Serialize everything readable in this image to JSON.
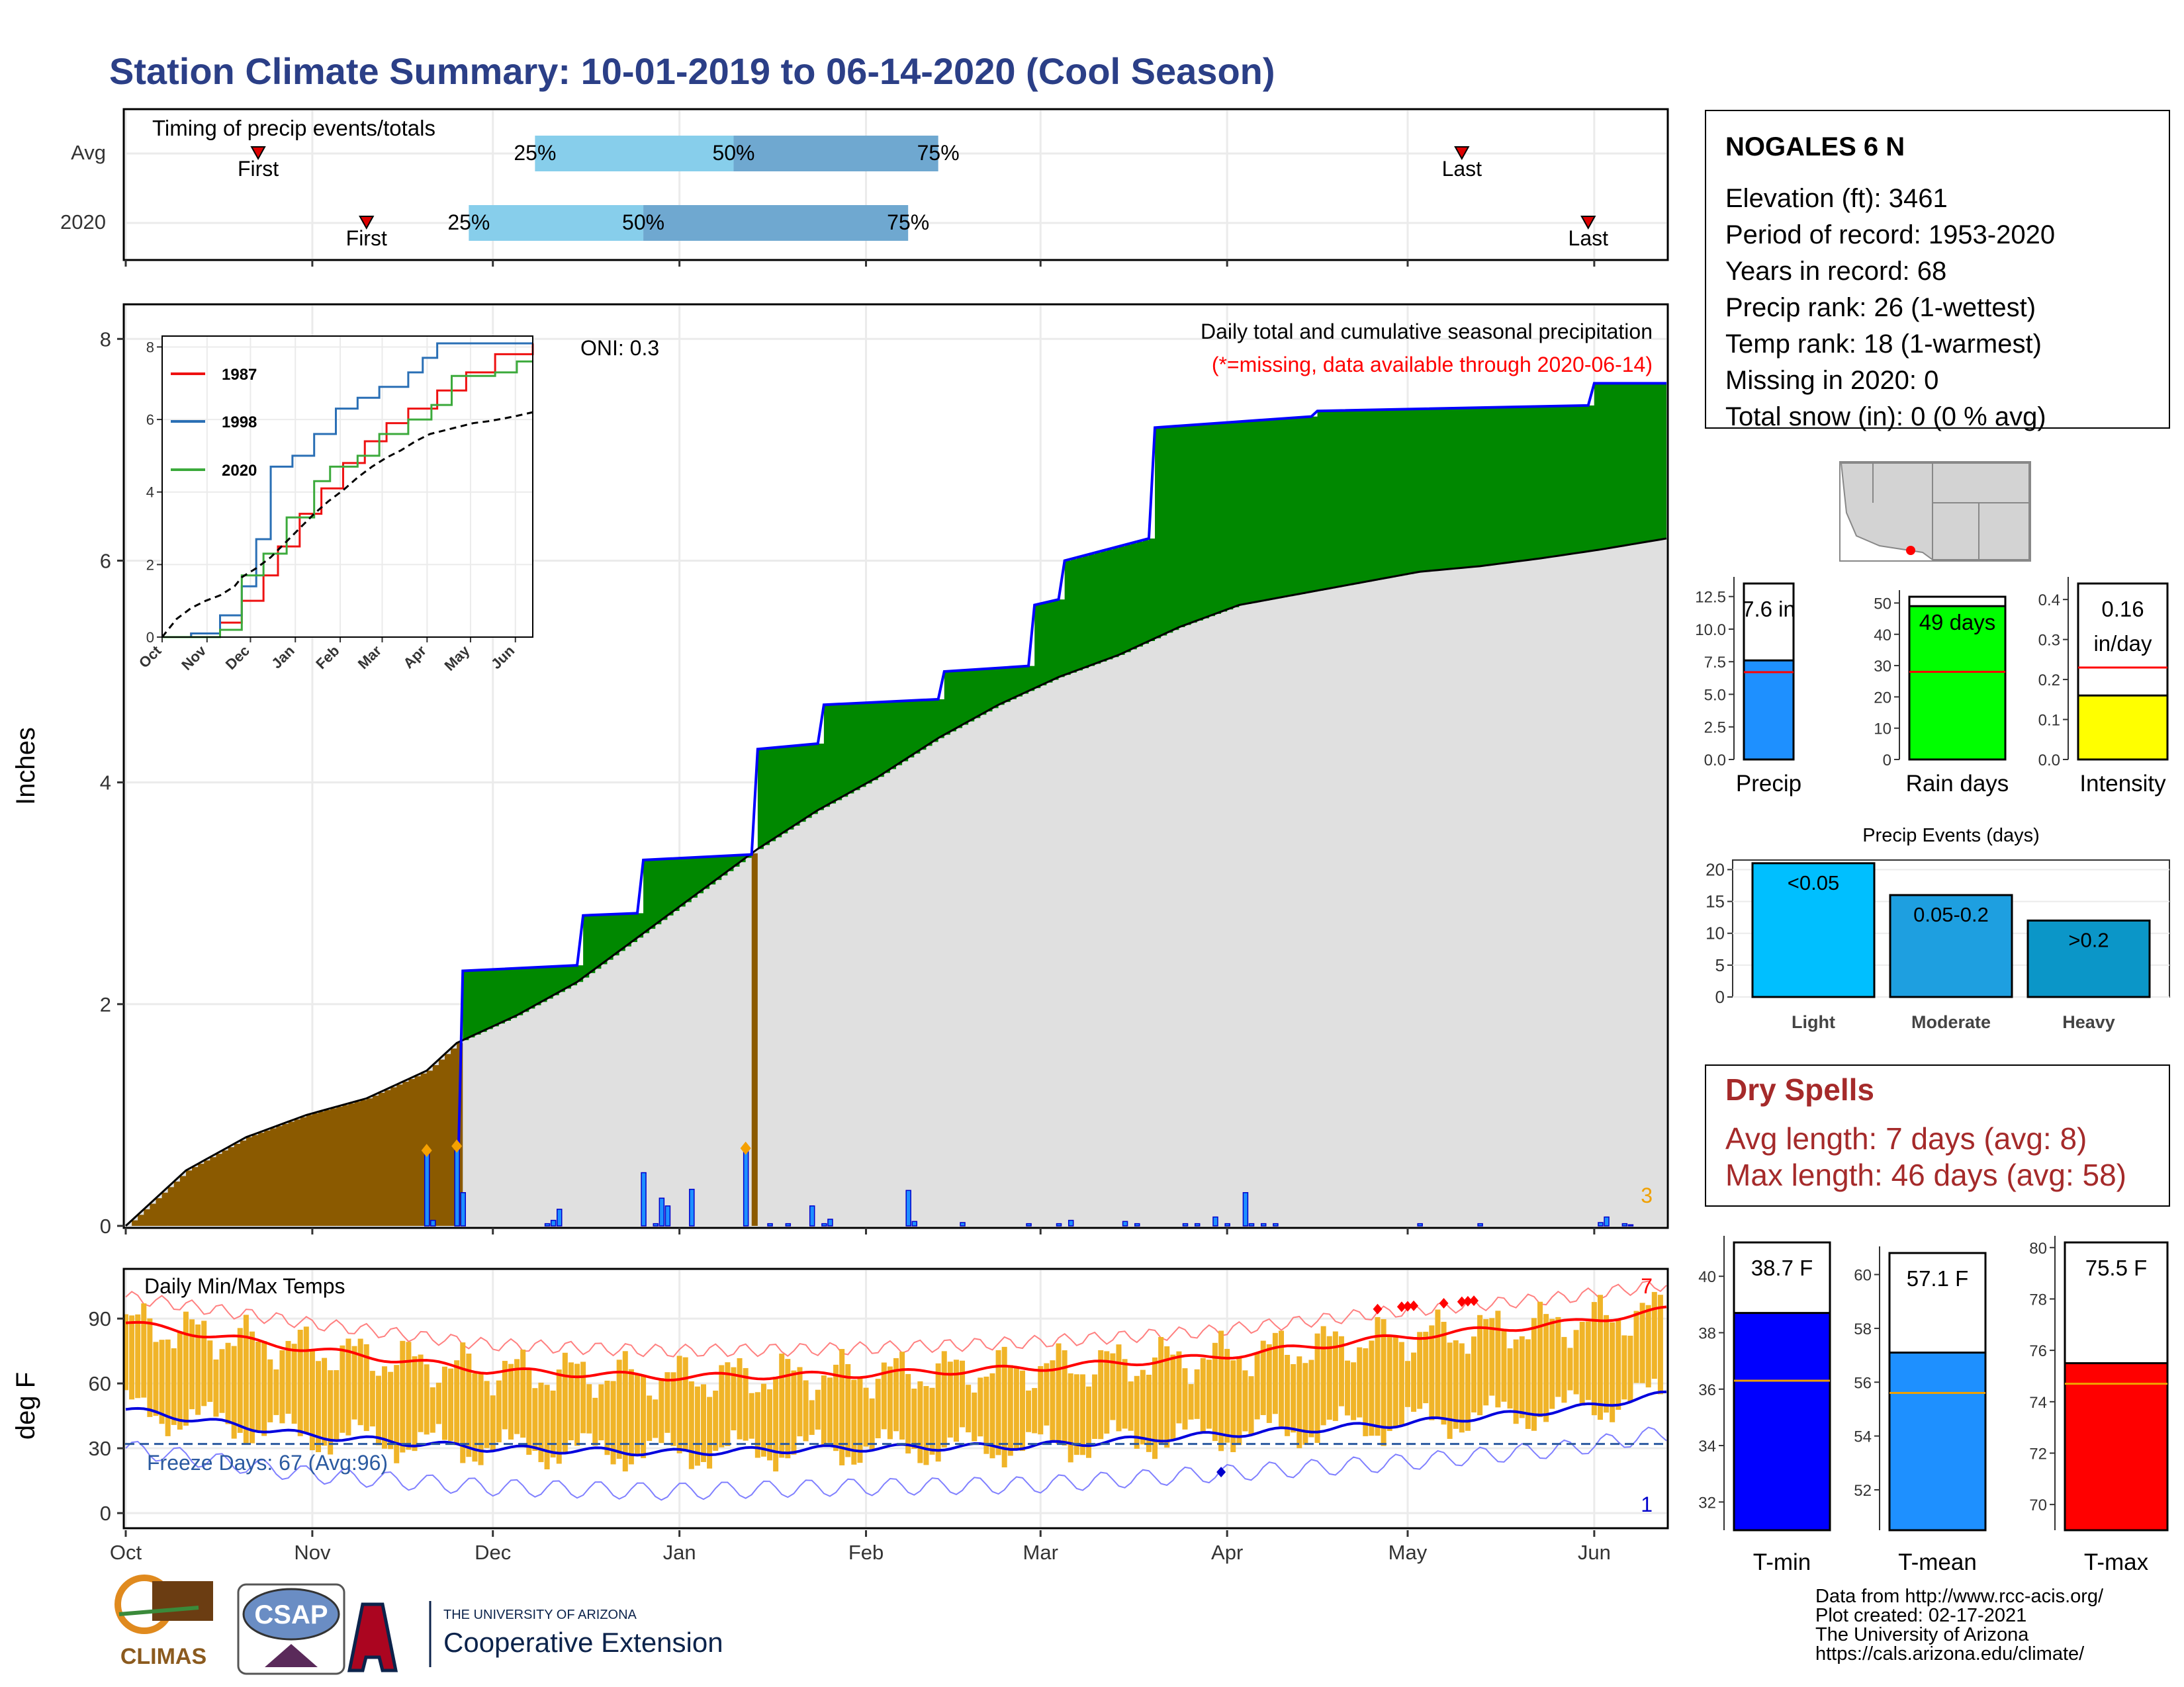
{
  "title": "Station Climate Summary: 10-01-2019 to 06-14-2020 (Cool Season)",
  "timing": {
    "caption": "Timing of precip events/totals",
    "rows": [
      {
        "label": "Avg",
        "first_label": "First",
        "last_label": "Last",
        "p25": "25%",
        "p50": "50%",
        "p75": "75%",
        "first_day": 22,
        "last_day": 222,
        "d25": 68,
        "d50": 101,
        "d75": 135
      },
      {
        "label": "2020",
        "first_label": "First",
        "last_label": "Last",
        "p25": "25%",
        "p50": "50%",
        "p75": "75%",
        "first_day": 40,
        "last_day": 243,
        "d25": 57,
        "d50": 86,
        "d75": 130
      }
    ]
  },
  "station": {
    "name": "NOGALES 6 N",
    "lines": [
      "Elevation (ft): 3461",
      "Period of record: 1953-2020",
      "Years in record: 68",
      "Precip rank: 26 (1-wettest)",
      "Temp rank: 18 (1-warmest)",
      "Missing in 2020: 0",
      "Total snow (in): 0 (0 % avg)"
    ]
  },
  "precip_panel": {
    "ylabel": "Inches",
    "oni": "ONI: 0.3",
    "subtitle": "Daily total and cumulative seasonal precipitation",
    "note": "(*=missing, data available through 2020-06-14)",
    "corner_count": "3",
    "yticks": [
      "0",
      "2",
      "4",
      "6",
      "8"
    ]
  },
  "months": [
    "Oct",
    "Nov",
    "Dec",
    "Jan",
    "Feb",
    "Mar",
    "Apr",
    "May",
    "Jun"
  ],
  "inset": {
    "legend": [
      "1987",
      "1998",
      "2020"
    ],
    "yticks": [
      "0",
      "2",
      "4",
      "6",
      "8"
    ],
    "months": [
      "Oct",
      "Nov",
      "Dec",
      "Jan",
      "Feb",
      "Mar",
      "Apr",
      "May",
      "Jun"
    ]
  },
  "bars_small": [
    {
      "value_label": "7.6 in",
      "name": "Precip",
      "yticks": [
        "0.0",
        "2.5",
        "5.0",
        "7.5",
        "10.0",
        "12.5"
      ]
    },
    {
      "value_label": "49 days",
      "name": "Rain days",
      "yticks": [
        "0",
        "10",
        "20",
        "30",
        "40",
        "50"
      ]
    },
    {
      "value_label1": "0.16",
      "value_label2": "in/day",
      "name": "Intensity",
      "yticks": [
        "0.0",
        "0.1",
        "0.2",
        "0.3",
        "0.4"
      ]
    }
  ],
  "events": {
    "title": "Precip Events (days)",
    "yticks": [
      "0",
      "5",
      "10",
      "15",
      "20"
    ],
    "bars": [
      {
        "label": "<0.05",
        "name": "Light"
      },
      {
        "label": "0.05-0.2",
        "name": "Moderate"
      },
      {
        "label": ">0.2",
        "name": "Heavy"
      }
    ]
  },
  "dry_spells": {
    "title": "Dry Spells",
    "avg": "Avg length: 7 days (avg: 8)",
    "max": "Max length: 46 days (avg: 58)"
  },
  "temp_panel": {
    "ylabel": "deg F",
    "title": "Daily Min/Max Temps",
    "freeze": "Freeze Days: 67 (Avg:96)",
    "count_top": "7",
    "count_bottom": "1",
    "yticks": [
      "0",
      "30",
      "60",
      "90"
    ]
  },
  "temp_bars": [
    {
      "value_label": "38.7 F",
      "name": "T-min",
      "yticks": [
        "32",
        "34",
        "36",
        "38",
        "40"
      ]
    },
    {
      "value_label": "57.1 F",
      "name": "T-mean",
      "yticks": [
        "52",
        "54",
        "56",
        "58",
        "60"
      ]
    },
    {
      "value_label": "75.5 F",
      "name": "T-max",
      "yticks": [
        "70",
        "72",
        "74",
        "76",
        "78",
        "80"
      ]
    }
  ],
  "footer": {
    "lines": [
      "Data from http://www.rcc-acis.org/",
      "Plot created: 02-17-2021",
      "The University of Arizona",
      "https://cals.arizona.edu/climate/"
    ],
    "logo1": "CLIMAS",
    "logo2": "CSAP",
    "logo3_small": "THE UNIVERSITY OF ARIZONA",
    "logo3_big": "Cooperative Extension"
  },
  "colors": {
    "green": "#008800",
    "brown": "#8b5a00",
    "gray": "#e0e0e0",
    "blue": "#0000ff",
    "orange": "#f0b428",
    "red": "#ff0000",
    "precip_bar": "#1e90ff",
    "raindays": "#00ff00",
    "intensity": "#ffff00",
    "light": "#00bfff",
    "moderate": "#1e9fe0",
    "heavy": "#0b96c8",
    "tmin": "#0000ff",
    "tmean": "#1e90ff",
    "tmax": "#ff0000"
  },
  "chart_data": [
    {
      "type": "area",
      "title": "Daily total and cumulative seasonal precipitation",
      "ylabel": "Inches",
      "ylim": [
        0,
        8.3
      ],
      "series": [
        {
          "name": "2020",
          "x_day": [
            0,
            55,
            56,
            75,
            76,
            85,
            86,
            104,
            105,
            115,
            116,
            135,
            136,
            150,
            151,
            155,
            156,
            170,
            171,
            197,
            198,
            243,
            244,
            256
          ],
          "values": [
            0,
            0,
            2.3,
            2.35,
            2.8,
            2.82,
            3.3,
            3.35,
            4.3,
            4.35,
            4.7,
            4.75,
            5.0,
            5.05,
            5.6,
            5.65,
            6.0,
            6.2,
            7.2,
            7.3,
            7.35,
            7.4,
            7.6,
            7.6
          ]
        },
        {
          "name": "Average",
          "x_day": [
            0,
            10,
            20,
            30,
            40,
            50,
            55,
            65,
            75,
            85,
            95,
            105,
            115,
            125,
            135,
            145,
            155,
            165,
            175,
            185,
            195,
            205,
            215,
            225,
            235,
            245,
            256
          ],
          "values": [
            0,
            0.5,
            0.8,
            1.0,
            1.15,
            1.4,
            1.65,
            1.9,
            2.2,
            2.6,
            3.0,
            3.4,
            3.75,
            4.05,
            4.4,
            4.7,
            4.95,
            5.15,
            5.4,
            5.6,
            5.7,
            5.8,
            5.9,
            5.95,
            6.02,
            6.1,
            6.2
          ]
        }
      ]
    },
    {
      "type": "line",
      "title": "Daily Min/Max Temps",
      "ylabel": "deg F",
      "ylim": [
        -5,
        115
      ],
      "series": [
        {
          "name": "Avg max",
          "x_day": [
            0,
            30,
            60,
            90,
            120,
            150,
            180,
            210,
            240,
            256
          ],
          "values": [
            88,
            76,
            66,
            63,
            64,
            67,
            72,
            81,
            88,
            94
          ]
        },
        {
          "name": "Avg min",
          "x_day": [
            0,
            30,
            60,
            90,
            120,
            150,
            180,
            210,
            240,
            256
          ],
          "values": [
            48,
            36,
            30,
            28,
            30,
            31,
            36,
            41,
            48,
            55
          ]
        }
      ]
    },
    {
      "type": "bar",
      "categories": [
        "Precip"
      ],
      "values": [
        7.6
      ],
      "ylim": [
        0,
        13.5
      ]
    },
    {
      "type": "bar",
      "categories": [
        "Rain days"
      ],
      "values": [
        49
      ],
      "ylim": [
        0,
        52
      ]
    },
    {
      "type": "bar",
      "categories": [
        "Intensity"
      ],
      "values": [
        0.16
      ],
      "ylim": [
        0,
        0.44
      ]
    },
    {
      "type": "bar",
      "title": "Precip Events (days)",
      "categories": [
        "Light",
        "Moderate",
        "Heavy"
      ],
      "values": [
        21,
        16,
        12
      ],
      "ylim": [
        0,
        21.5
      ]
    },
    {
      "type": "bar",
      "categories": [
        "T-min"
      ],
      "values": [
        38.7
      ],
      "ylim": [
        31,
        41.2
      ]
    },
    {
      "type": "bar",
      "categories": [
        "T-mean"
      ],
      "values": [
        57.1
      ],
      "ylim": [
        50.5,
        60.8
      ]
    },
    {
      "type": "bar",
      "categories": [
        "T-max"
      ],
      "values": [
        75.5
      ],
      "ylim": [
        69,
        80.2
      ]
    }
  ]
}
